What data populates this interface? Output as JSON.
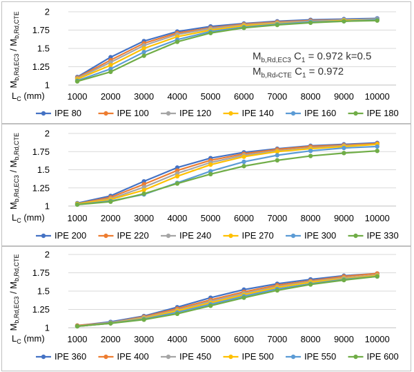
{
  "chart_data": [
    {
      "type": "line",
      "x": [
        1000,
        2000,
        3000,
        4000,
        5000,
        6000,
        7000,
        8000,
        9000,
        10000
      ],
      "ylim": [
        1,
        2
      ],
      "yticks": [
        "1",
        "1.25",
        "1.5",
        "1.75",
        "2"
      ],
      "ylabel": {
        "main1": "M",
        "sub1": "b,Rd,EC3",
        "mid": " / M",
        "sub2": "b,Rd,CTE"
      },
      "xlabel": {
        "main": "L",
        "sub": "C",
        "rest": " (mm)"
      },
      "annotation": {
        "line1": {
          "main": "M",
          "sub": "b,Rd,EC3",
          "c": "C",
          "csub": "1",
          "rest": " = 0.972 k=0.5"
        },
        "line2": {
          "main": "M",
          "sub": "b,Rd⸗CTE",
          "c": "C",
          "csub": "1",
          "rest": " = 0.972"
        }
      },
      "series": [
        {
          "name": "IPE 80",
          "color": "#4472C4",
          "values": [
            1.11,
            1.38,
            1.6,
            1.73,
            1.8,
            1.84,
            1.87,
            1.89,
            1.9,
            1.91
          ]
        },
        {
          "name": "IPE 100",
          "color": "#ED7D31",
          "values": [
            1.1,
            1.34,
            1.57,
            1.71,
            1.78,
            1.83,
            1.86,
            1.88,
            1.89,
            1.9
          ]
        },
        {
          "name": "IPE 120",
          "color": "#A5A5A5",
          "values": [
            1.09,
            1.31,
            1.54,
            1.69,
            1.77,
            1.82,
            1.85,
            1.87,
            1.89,
            1.9
          ]
        },
        {
          "name": "IPE 140",
          "color": "#FFC000",
          "values": [
            1.08,
            1.27,
            1.5,
            1.66,
            1.75,
            1.81,
            1.84,
            1.86,
            1.88,
            1.89
          ]
        },
        {
          "name": "IPE 160",
          "color": "#5B9BD5",
          "values": [
            1.06,
            1.22,
            1.45,
            1.62,
            1.73,
            1.79,
            1.83,
            1.86,
            1.87,
            1.89
          ]
        },
        {
          "name": "IPE 180",
          "color": "#70AD47",
          "values": [
            1.05,
            1.18,
            1.4,
            1.59,
            1.71,
            1.78,
            1.82,
            1.85,
            1.87,
            1.88
          ]
        }
      ]
    },
    {
      "type": "line",
      "x": [
        1000,
        2000,
        3000,
        4000,
        5000,
        6000,
        7000,
        8000,
        9000,
        10000
      ],
      "ylim": [
        1,
        2
      ],
      "yticks": [
        "1",
        "1.25",
        "1.5",
        "1.75",
        "2"
      ],
      "ylabel": {
        "main1": "M",
        "sub1": "b,Rd,EC3",
        "mid": " / M",
        "sub2": "b,Rd,CTE"
      },
      "xlabel": {
        "main": "L",
        "sub": "C",
        "rest": " (mm)"
      },
      "series": [
        {
          "name": "IPE 200",
          "color": "#4472C4",
          "values": [
            1.04,
            1.14,
            1.34,
            1.53,
            1.66,
            1.74,
            1.79,
            1.83,
            1.85,
            1.87
          ]
        },
        {
          "name": "IPE 220",
          "color": "#ED7D31",
          "values": [
            1.03,
            1.12,
            1.3,
            1.49,
            1.63,
            1.72,
            1.78,
            1.82,
            1.84,
            1.86
          ]
        },
        {
          "name": "IPE 240",
          "color": "#A5A5A5",
          "values": [
            1.03,
            1.1,
            1.26,
            1.45,
            1.6,
            1.7,
            1.76,
            1.8,
            1.83,
            1.85
          ]
        },
        {
          "name": "IPE 270",
          "color": "#FFC000",
          "values": [
            1.03,
            1.09,
            1.22,
            1.41,
            1.57,
            1.68,
            1.75,
            1.79,
            1.82,
            1.85
          ]
        },
        {
          "name": "IPE 300",
          "color": "#5B9BD5",
          "values": [
            1.02,
            1.07,
            1.16,
            1.32,
            1.48,
            1.61,
            1.7,
            1.76,
            1.8,
            1.82
          ]
        },
        {
          "name": "IPE 330",
          "color": "#70AD47",
          "values": [
            1.02,
            1.06,
            1.17,
            1.31,
            1.44,
            1.55,
            1.63,
            1.69,
            1.73,
            1.76
          ]
        }
      ]
    },
    {
      "type": "line",
      "x": [
        1000,
        2000,
        3000,
        4000,
        5000,
        6000,
        7000,
        8000,
        9000,
        10000
      ],
      "ylim": [
        1,
        2
      ],
      "yticks": [
        "1",
        "1.25",
        "1.5",
        "1.75",
        "2"
      ],
      "ylabel": {
        "main1": "M",
        "sub1": "b,Rd,EC3",
        "mid": " / M",
        "sub2": "b,Rd,CTE"
      },
      "xlabel": {
        "main": "L",
        "sub": "C",
        "rest": " (mm)"
      },
      "series": [
        {
          "name": "IPE 360",
          "color": "#4472C4",
          "values": [
            1.03,
            1.08,
            1.16,
            1.28,
            1.41,
            1.52,
            1.6,
            1.66,
            1.71,
            1.74
          ]
        },
        {
          "name": "IPE 400",
          "color": "#ED7D31",
          "values": [
            1.03,
            1.07,
            1.15,
            1.26,
            1.38,
            1.49,
            1.58,
            1.64,
            1.7,
            1.74
          ]
        },
        {
          "name": "IPE 450",
          "color": "#A5A5A5",
          "values": [
            1.02,
            1.07,
            1.14,
            1.24,
            1.36,
            1.47,
            1.56,
            1.63,
            1.68,
            1.72
          ]
        },
        {
          "name": "IPE 500",
          "color": "#FFC000",
          "values": [
            1.02,
            1.06,
            1.13,
            1.23,
            1.34,
            1.45,
            1.55,
            1.62,
            1.67,
            1.71
          ]
        },
        {
          "name": "IPE 550",
          "color": "#5B9BD5",
          "values": [
            1.02,
            1.06,
            1.12,
            1.21,
            1.32,
            1.43,
            1.53,
            1.6,
            1.66,
            1.7
          ]
        },
        {
          "name": "IPE 600",
          "color": "#70AD47",
          "values": [
            1.02,
            1.06,
            1.11,
            1.19,
            1.3,
            1.41,
            1.51,
            1.59,
            1.65,
            1.7
          ]
        }
      ]
    }
  ]
}
